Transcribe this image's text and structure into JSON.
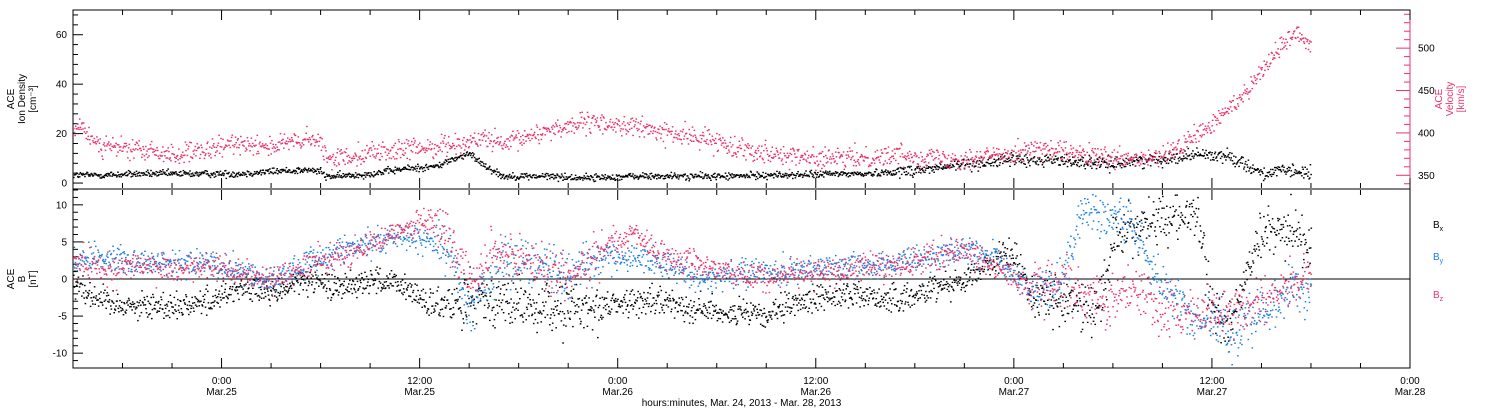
{
  "chart_data": {
    "type": "scatter",
    "xlabel": "hours:minutes, Mar. 24, 2013 - Mar. 28, 2013",
    "x_ticks": [
      {
        "hours": 9,
        "time": "0:00",
        "date": "Mar.25"
      },
      {
        "hours": 21,
        "time": "12:00",
        "date": "Mar.25"
      },
      {
        "hours": 33,
        "time": "0:00",
        "date": "Mar.26"
      },
      {
        "hours": 45,
        "time": "12:00",
        "date": "Mar.26"
      },
      {
        "hours": 57,
        "time": "0:00",
        "date": "Mar.27"
      },
      {
        "hours": 69,
        "time": "12:00",
        "date": "Mar.27"
      },
      {
        "hours": 81,
        "time": "0:00",
        "date": "Mar.28"
      }
    ],
    "x_range_hours": [
      0,
      81
    ],
    "panels": [
      {
        "id": "plasma",
        "left_axis": {
          "label_lines": [
            "ACE",
            "Ion Density",
            "[cm⁻³]"
          ],
          "ylim": [
            -2,
            70
          ],
          "ticks": [
            0,
            20,
            40,
            60
          ],
          "tick_labels": [
            "0",
            "20",
            "40",
            "60"
          ],
          "color": "#000000"
        },
        "right_axis": {
          "label_lines": [
            "ACE",
            "Velocity",
            "[km/s]"
          ],
          "ylim": [
            335,
            545
          ],
          "ticks": [
            350,
            400,
            450,
            500
          ],
          "tick_labels": [
            "350",
            "400",
            "450",
            "500"
          ],
          "color": "#e8336a"
        },
        "series": [
          {
            "axis": "left",
            "color": "#000000",
            "x": [
              0,
              2,
              4,
              6,
              8,
              10,
              12,
              14,
              15,
              15.2,
              16,
              18,
              20,
              22,
              23,
              24,
              25,
              26,
              27,
              28,
              29,
              30,
              32,
              34,
              36,
              38,
              40,
              42,
              44,
              46,
              48,
              50,
              52,
              54,
              56,
              57,
              58,
              59,
              60,
              61,
              62,
              63,
              64,
              66,
              68,
              70,
              71,
              72,
              73,
              74,
              75
            ],
            "y": [
              3.5,
              3.5,
              4,
              4,
              4,
              4,
              5,
              5.5,
              5,
              3,
              3,
              4,
              6,
              7,
              10,
              12,
              7,
              3,
              3,
              3,
              3,
              2.5,
              2.5,
              3,
              3,
              3,
              3,
              3.5,
              3.5,
              4,
              4,
              5,
              6,
              8,
              9,
              10,
              9,
              10,
              9,
              9,
              8,
              8,
              9,
              10,
              12,
              11,
              8,
              4,
              5,
              5,
              4
            ]
          },
          {
            "axis": "right",
            "color": "#e8336a",
            "x": [
              0,
              0.5,
              1,
              2,
              4,
              6,
              8,
              10,
              12,
              14,
              15,
              15.3,
              16,
              18,
              20,
              22,
              24,
              25,
              26,
              28,
              30,
              32,
              34,
              36,
              38,
              40,
              42,
              44,
              46,
              48,
              50,
              52,
              54,
              56,
              58,
              60,
              62,
              64,
              66,
              67,
              68,
              69,
              70,
              71,
              72,
              73,
              74,
              75
            ],
            "y": [
              400,
              410,
              395,
              385,
              380,
              375,
              378,
              390,
              385,
              392,
              390,
              368,
              372,
              378,
              380,
              385,
              390,
              395,
              385,
              400,
              410,
              412,
              408,
              400,
              395,
              385,
              378,
              372,
              370,
              372,
              375,
              372,
              370,
              375,
              382,
              378,
              372,
              368,
              372,
              385,
              398,
              410,
              430,
              450,
              475,
              500,
              520,
              505
            ]
          }
        ]
      },
      {
        "id": "magnetic",
        "left_axis": {
          "label_lines": [
            "ACE",
            "B",
            "[nT]"
          ],
          "ylim": [
            -12,
            12
          ],
          "ticks": [
            -10,
            -5,
            0,
            5,
            10
          ],
          "tick_labels": [
            "-10",
            "-5",
            "0",
            "5",
            "10"
          ],
          "color": "#000000"
        },
        "zero_line": true,
        "series": [
          {
            "name": "Bx",
            "axis": "left",
            "color": "#000000",
            "x": [
              0,
              1,
              2,
              4,
              6,
              8,
              10,
              12,
              14,
              16,
              18,
              20,
              22,
              24,
              26,
              28,
              30,
              32,
              34,
              36,
              38,
              40,
              42,
              44,
              46,
              48,
              50,
              52,
              54,
              56,
              57,
              58,
              60,
              62,
              63,
              64,
              66,
              68,
              69,
              70,
              72,
              74,
              75
            ],
            "y": [
              0,
              -2,
              -3,
              -3.5,
              -3.5,
              -3,
              -1,
              -2,
              0,
              -1,
              0,
              -1,
              -4,
              -2,
              -3,
              -4,
              -4,
              -3.5,
              -3,
              -3,
              -4,
              -4.5,
              -5,
              -3,
              -2,
              -2,
              -3,
              -1,
              0,
              3,
              3.5,
              -2,
              -3,
              -4,
              5,
              7,
              8,
              9,
              -4,
              -6,
              6,
              7,
              3
            ]
          },
          {
            "name": "By",
            "axis": "left",
            "color": "#1a7fe0",
            "x": [
              0,
              2,
              4,
              6,
              8,
              10,
              12,
              14,
              16,
              18,
              20,
              22,
              23,
              24,
              26,
              28,
              30,
              32,
              34,
              36,
              38,
              40,
              42,
              44,
              46,
              48,
              50,
              52,
              54,
              56,
              58,
              60,
              61,
              62,
              64,
              65,
              66,
              67,
              68,
              69,
              70,
              72,
              74,
              75
            ],
            "y": [
              3,
              3,
              2.5,
              2,
              2.5,
              1,
              0,
              2,
              4,
              5,
              6,
              5,
              3,
              -4,
              3,
              2,
              1,
              3,
              3,
              2,
              0,
              1,
              1,
              1,
              2,
              2,
              2,
              3,
              4,
              3,
              -2,
              0,
              9,
              9,
              8,
              3,
              -1,
              -3,
              -6,
              -5,
              -8,
              -4,
              -1,
              -2
            ]
          },
          {
            "name": "Bz",
            "axis": "left",
            "color": "#e8336a",
            "x": [
              0,
              2,
              4,
              6,
              8,
              10,
              12,
              14,
              16,
              18,
              20,
              22,
              23,
              24,
              26,
              28,
              30,
              32,
              34,
              36,
              38,
              40,
              42,
              44,
              46,
              48,
              50,
              52,
              54,
              56,
              58,
              60,
              61,
              62,
              64,
              66,
              68,
              70,
              72,
              74,
              75
            ],
            "y": [
              3,
              1,
              2,
              1,
              2,
              1,
              0,
              2,
              3,
              5,
              7,
              8,
              4,
              0,
              4,
              2,
              0,
              4,
              6,
              3,
              2,
              1,
              0,
              1,
              1,
              2,
              2,
              3,
              4,
              2,
              -2,
              0,
              -2,
              -3,
              -1,
              -4,
              -5,
              -4,
              -3,
              0,
              0
            ]
          }
        ],
        "legend": [
          {
            "main": "B",
            "sub": "x",
            "color": "#000000"
          },
          {
            "main": "B",
            "sub": "y",
            "color": "#1a7fe0"
          },
          {
            "main": "B",
            "sub": "z",
            "color": "#e8336a"
          }
        ]
      }
    ]
  }
}
